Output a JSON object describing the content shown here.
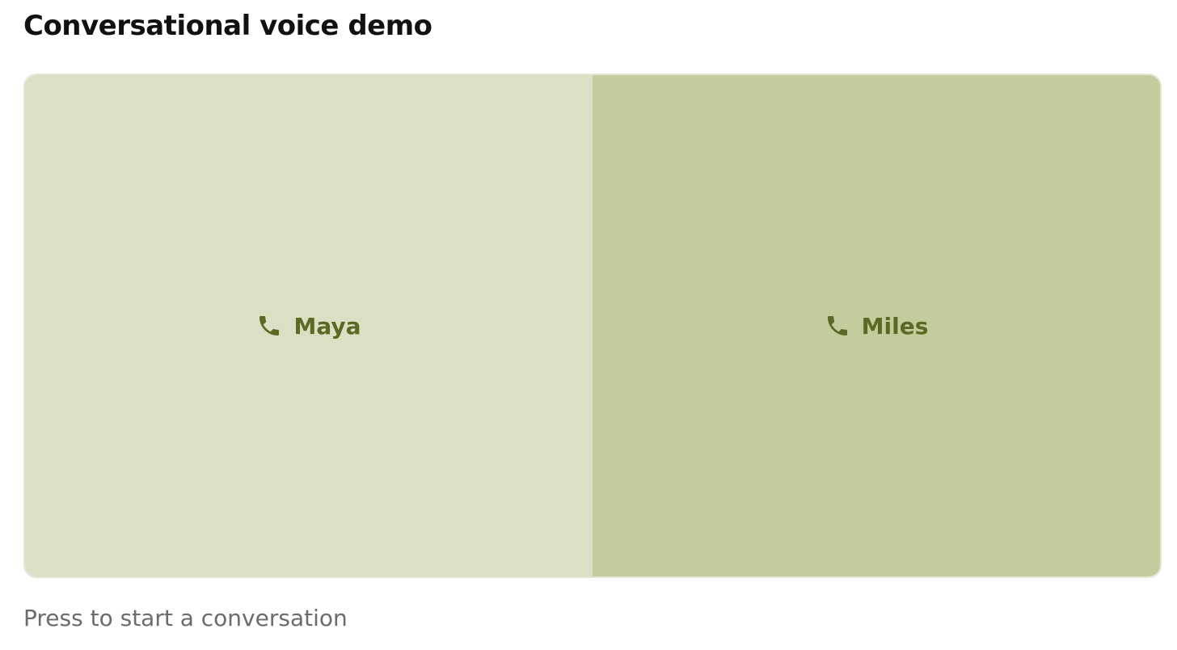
{
  "header": {
    "title": "Conversational voice demo"
  },
  "voices": [
    {
      "label": "Maya"
    },
    {
      "label": "Miles"
    }
  ],
  "hint": "Press to start a conversation"
}
